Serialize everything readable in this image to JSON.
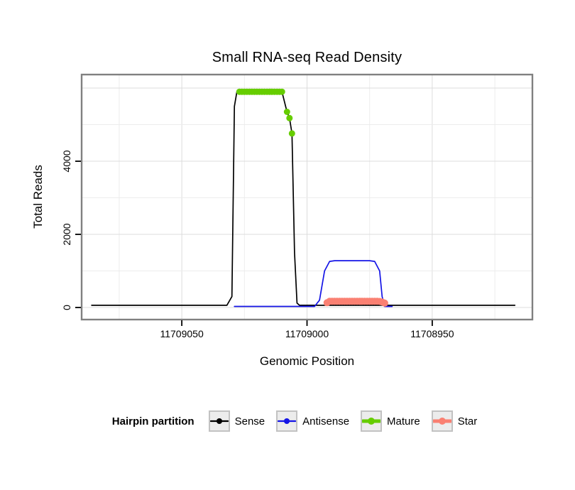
{
  "title": "Small RNA-seq Read Density",
  "x_axis": {
    "label": "Genomic Position",
    "ticks": [
      11709050,
      11709000,
      11708950
    ],
    "minor_step": 25,
    "reversed": true
  },
  "y_axis": {
    "label": "Total Reads",
    "ticks": [
      0,
      2000,
      4000
    ],
    "minor_step": 1000
  },
  "legend": {
    "title": "Hairpin partition",
    "items": [
      {
        "label": "Sense",
        "color": "#000000"
      },
      {
        "label": "Antisense",
        "color": "#1414e6"
      },
      {
        "label": "Mature",
        "color": "#66cd00"
      },
      {
        "label": "Star",
        "color": "#fa8072"
      }
    ]
  },
  "style": {
    "panel_border": "#808080",
    "grid_major": "#dcdcdc",
    "grid_minor": "#ececec",
    "tick_color": "#000000"
  },
  "chart_data": {
    "type": "line",
    "title": "Small RNA-seq Read Density",
    "xlabel": "Genomic Position",
    "ylabel": "Total Reads",
    "x_reversed": true,
    "x_domain": [
      11709090,
      11708910
    ],
    "y_domain": [
      -330,
      6370
    ],
    "x_ticks": [
      11709050,
      11709000,
      11708950
    ],
    "y_ticks": [
      0,
      2000,
      4000
    ],
    "grid": true,
    "legend_position": "bottom",
    "series": [
      {
        "name": "Sense",
        "color": "#000000",
        "style": "line",
        "width": 1.7,
        "points": [
          [
            11709086,
            60
          ],
          [
            11709032,
            60
          ],
          [
            11709030,
            300
          ],
          [
            11709029,
            5500
          ],
          [
            11709028,
            5900
          ],
          [
            11709010,
            5900
          ],
          [
            11709008,
            5350
          ],
          [
            11709007,
            5180
          ],
          [
            11709006,
            4760
          ],
          [
            11709005,
            1500
          ],
          [
            11709004,
            120
          ],
          [
            11709003,
            60
          ],
          [
            11708917,
            60
          ]
        ]
      },
      {
        "name": "Antisense",
        "color": "#1414e6",
        "style": "line",
        "width": 1.7,
        "points": [
          [
            11709029,
            30
          ],
          [
            11708997,
            30
          ],
          [
            11708995,
            200
          ],
          [
            11708993,
            1000
          ],
          [
            11708991,
            1260
          ],
          [
            11708989,
            1280
          ],
          [
            11708975,
            1280
          ],
          [
            11708973,
            1260
          ],
          [
            11708971,
            1000
          ],
          [
            11708970,
            300
          ],
          [
            11708969,
            30
          ],
          [
            11708966,
            30
          ]
        ]
      },
      {
        "name": "Mature",
        "color": "#66cd00",
        "style": "points",
        "radius": 4.5,
        "points": [
          [
            11709027,
            5900
          ],
          [
            11709026,
            5900
          ],
          [
            11709025,
            5900
          ],
          [
            11709024,
            5900
          ],
          [
            11709023,
            5900
          ],
          [
            11709022,
            5900
          ],
          [
            11709021,
            5900
          ],
          [
            11709020,
            5900
          ],
          [
            11709019,
            5900
          ],
          [
            11709018,
            5900
          ],
          [
            11709017,
            5900
          ],
          [
            11709016,
            5900
          ],
          [
            11709015,
            5900
          ],
          [
            11709014,
            5900
          ],
          [
            11709013,
            5900
          ],
          [
            11709012,
            5900
          ],
          [
            11709011,
            5900
          ],
          [
            11709010,
            5900
          ],
          [
            11709008,
            5350
          ],
          [
            11709007,
            5180
          ],
          [
            11709006,
            4760
          ]
        ]
      },
      {
        "name": "Star",
        "color": "#fa8072",
        "style": "points",
        "radius": 5,
        "points": [
          [
            11708992,
            130
          ],
          [
            11708991,
            170
          ],
          [
            11708990,
            170
          ],
          [
            11708989,
            170
          ],
          [
            11708988,
            170
          ],
          [
            11708987,
            170
          ],
          [
            11708986,
            170
          ],
          [
            11708985,
            170
          ],
          [
            11708984,
            170
          ],
          [
            11708983,
            170
          ],
          [
            11708982,
            170
          ],
          [
            11708981,
            170
          ],
          [
            11708980,
            170
          ],
          [
            11708979,
            170
          ],
          [
            11708978,
            170
          ],
          [
            11708977,
            170
          ],
          [
            11708976,
            170
          ],
          [
            11708975,
            170
          ],
          [
            11708974,
            170
          ],
          [
            11708973,
            170
          ],
          [
            11708972,
            170
          ],
          [
            11708971,
            165
          ],
          [
            11708970,
            150
          ],
          [
            11708969,
            120
          ]
        ]
      }
    ]
  }
}
